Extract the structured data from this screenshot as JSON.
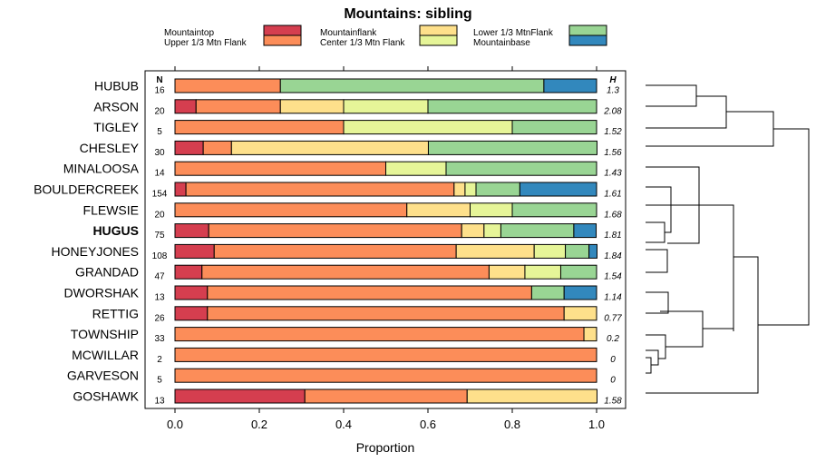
{
  "chart_data": {
    "type": "bar",
    "stacked": true,
    "orientation": "horizontal",
    "title": "Mountains: sibling",
    "xlabel": "Proportion",
    "xlim": [
      0,
      1
    ],
    "xticks": [
      "0.0",
      "0.2",
      "0.4",
      "0.6",
      "0.8",
      "1.0"
    ],
    "n_header": "N",
    "h_header": "H",
    "legend": [
      {
        "key": "mountaintop",
        "label": "Mountaintop",
        "color": "#d53e4f"
      },
      {
        "key": "upper",
        "label": "Upper 1/3 Mtn Flank",
        "color": "#fc8d59"
      },
      {
        "key": "mountainflank",
        "label": "Mountainflank",
        "color": "#fee08b"
      },
      {
        "key": "center",
        "label": "Center 1/3 Mtn Flank",
        "color": "#e6f598"
      },
      {
        "key": "lower",
        "label": "Lower 1/3 MtnFlank",
        "color": "#99d594"
      },
      {
        "key": "base",
        "label": "Mountainbase",
        "color": "#3288bd"
      }
    ],
    "segment_order": [
      "mountaintop",
      "upper",
      "mountainflank",
      "center",
      "lower",
      "base"
    ],
    "rows": [
      {
        "label": "HUBUB",
        "n": "16",
        "h": "1.3",
        "bold": false,
        "values": [
          0,
          0.25,
          0,
          0,
          0.625,
          0.125
        ]
      },
      {
        "label": "ARSON",
        "n": "20",
        "h": "2.08",
        "bold": false,
        "values": [
          0.05,
          0.2,
          0.15,
          0.2,
          0.4,
          0
        ]
      },
      {
        "label": "TIGLEY",
        "n": "5",
        "h": "1.52",
        "bold": false,
        "values": [
          0,
          0.4,
          0,
          0.4,
          0.2,
          0
        ]
      },
      {
        "label": "CHESLEY",
        "n": "30",
        "h": "1.56",
        "bold": false,
        "values": [
          0.067,
          0.067,
          0.467,
          0,
          0.4,
          0
        ]
      },
      {
        "label": "MINALOOSA",
        "n": "14",
        "h": "1.43",
        "bold": false,
        "values": [
          0,
          0.5,
          0,
          0.143,
          0.357,
          0
        ]
      },
      {
        "label": "BOULDERCREEK",
        "n": "154",
        "h": "1.61",
        "bold": false,
        "values": [
          0.026,
          0.636,
          0.026,
          0.026,
          0.104,
          0.182
        ]
      },
      {
        "label": "FLEWSIE",
        "n": "20",
        "h": "1.68",
        "bold": false,
        "values": [
          0,
          0.55,
          0.15,
          0.1,
          0.2,
          0
        ]
      },
      {
        "label": "HUGUS",
        "n": "75",
        "h": "1.81",
        "bold": true,
        "values": [
          0.08,
          0.6,
          0.053,
          0.04,
          0.173,
          0.053
        ]
      },
      {
        "label": "HONEYJONES",
        "n": "108",
        "h": "1.84",
        "bold": false,
        "values": [
          0.093,
          0.574,
          0.185,
          0.074,
          0.056,
          0.019
        ]
      },
      {
        "label": "GRANDAD",
        "n": "47",
        "h": "1.54",
        "bold": false,
        "values": [
          0.064,
          0.681,
          0.085,
          0.085,
          0.085,
          0
        ]
      },
      {
        "label": "DWORSHAK",
        "n": "13",
        "h": "1.14",
        "bold": false,
        "values": [
          0.077,
          0.769,
          0,
          0,
          0.077,
          0.077
        ]
      },
      {
        "label": "RETTIG",
        "n": "26",
        "h": "0.77",
        "bold": false,
        "values": [
          0.077,
          0.846,
          0.077,
          0,
          0,
          0
        ]
      },
      {
        "label": "TOWNSHIP",
        "n": "33",
        "h": "0.2",
        "bold": false,
        "values": [
          0,
          0.97,
          0.03,
          0,
          0,
          0
        ]
      },
      {
        "label": "MCWILLAR",
        "n": "2",
        "h": "0",
        "bold": false,
        "values": [
          0,
          1,
          0,
          0,
          0,
          0
        ]
      },
      {
        "label": "GARVESON",
        "n": "5",
        "h": "0",
        "bold": false,
        "values": [
          0,
          1,
          0,
          0,
          0,
          0
        ]
      },
      {
        "label": "GOSHAWK",
        "n": "13",
        "h": "1.58",
        "bold": false,
        "values": [
          0.308,
          0.385,
          0.308,
          0,
          0,
          0
        ]
      }
    ]
  }
}
